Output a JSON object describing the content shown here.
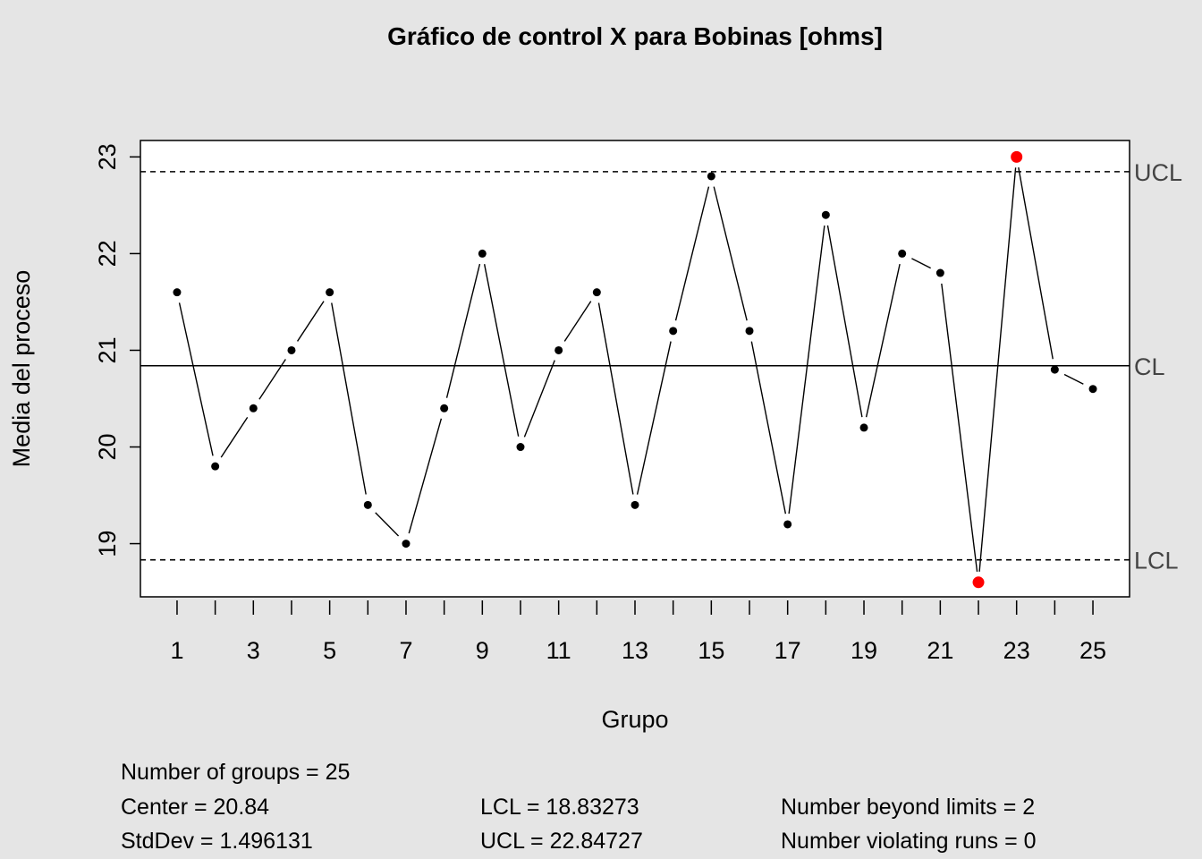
{
  "chart_data": {
    "type": "line",
    "title": "Gráfico de control X para Bobinas [ohms]",
    "xlabel": "Grupo",
    "ylabel": "Media del proceso",
    "x": [
      1,
      2,
      3,
      4,
      5,
      6,
      7,
      8,
      9,
      10,
      11,
      12,
      13,
      14,
      15,
      16,
      17,
      18,
      19,
      20,
      21,
      22,
      23,
      24,
      25
    ],
    "values": [
      21.6,
      19.8,
      20.4,
      21.0,
      21.6,
      19.4,
      19.0,
      20.4,
      22.0,
      20.0,
      21.0,
      21.6,
      19.4,
      21.2,
      22.8,
      21.2,
      19.2,
      22.4,
      20.2,
      22.0,
      21.8,
      18.6,
      23.0,
      20.8,
      20.6
    ],
    "violations": [
      22,
      23
    ],
    "xticks_labeled": [
      1,
      3,
      5,
      7,
      9,
      11,
      13,
      15,
      17,
      19,
      21,
      23,
      25
    ],
    "yticks": [
      19,
      20,
      21,
      22,
      23
    ],
    "ylim": [
      18.45,
      23.17
    ],
    "xlim": [
      0.04,
      25.96
    ],
    "center": 20.84,
    "lcl": 18.83273,
    "ucl": 22.84727,
    "limit_labels": {
      "ucl": "UCL",
      "cl": "CL",
      "lcl": "LCL"
    },
    "grid": false,
    "colors": {
      "point": "#000000",
      "violation": "#ff0000",
      "background": "#e5e5e5",
      "plot": "#ffffff"
    }
  },
  "stats": {
    "groups": "Number of groups = 25",
    "center": "Center = 20.84",
    "stddev": "StdDev = 1.496131",
    "lcl": "LCL = 18.83273",
    "ucl": "UCL = 22.84727",
    "beyond": "Number beyond limits = 2",
    "runs": "Number violating runs = 0"
  }
}
